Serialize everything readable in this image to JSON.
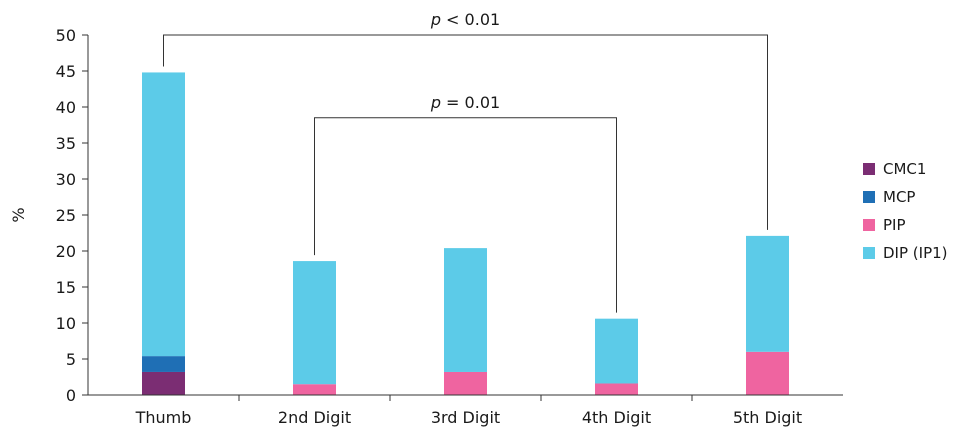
{
  "chart_data": {
    "type": "bar",
    "stacked": true,
    "categories": [
      "Thumb",
      "2nd Digit",
      "3rd Digit",
      "4th Digit",
      "5th Digit"
    ],
    "series": [
      {
        "name": "CMC1",
        "color": "#7b2d73",
        "values": [
          3.2,
          0,
          0,
          0,
          0
        ]
      },
      {
        "name": "MCP",
        "color": "#1f6fb5",
        "values": [
          2.2,
          0,
          0,
          0,
          0
        ]
      },
      {
        "name": "PIP",
        "color": "#ef64a0",
        "values": [
          0,
          1.5,
          3.2,
          1.6,
          6.0
        ]
      },
      {
        "name": "DIP (IP1)",
        "color": "#5ccbe8",
        "values": [
          39.4,
          17.1,
          17.2,
          9.0,
          16.1
        ]
      }
    ],
    "ylabel": "%",
    "ylim": [
      0,
      50
    ],
    "yticks": [
      0,
      5,
      10,
      15,
      20,
      25,
      30,
      35,
      40,
      45,
      50
    ],
    "legend_position": "right",
    "grid": false,
    "annotations": [
      {
        "from": "Thumb",
        "to": "5th Digit",
        "p_symbol": "p",
        "text": " < 0.01",
        "y": 50
      },
      {
        "from": "2nd Digit",
        "to": "4th Digit",
        "p_symbol": "p",
        "text": " = 0.01",
        "y": 38.5
      }
    ]
  }
}
